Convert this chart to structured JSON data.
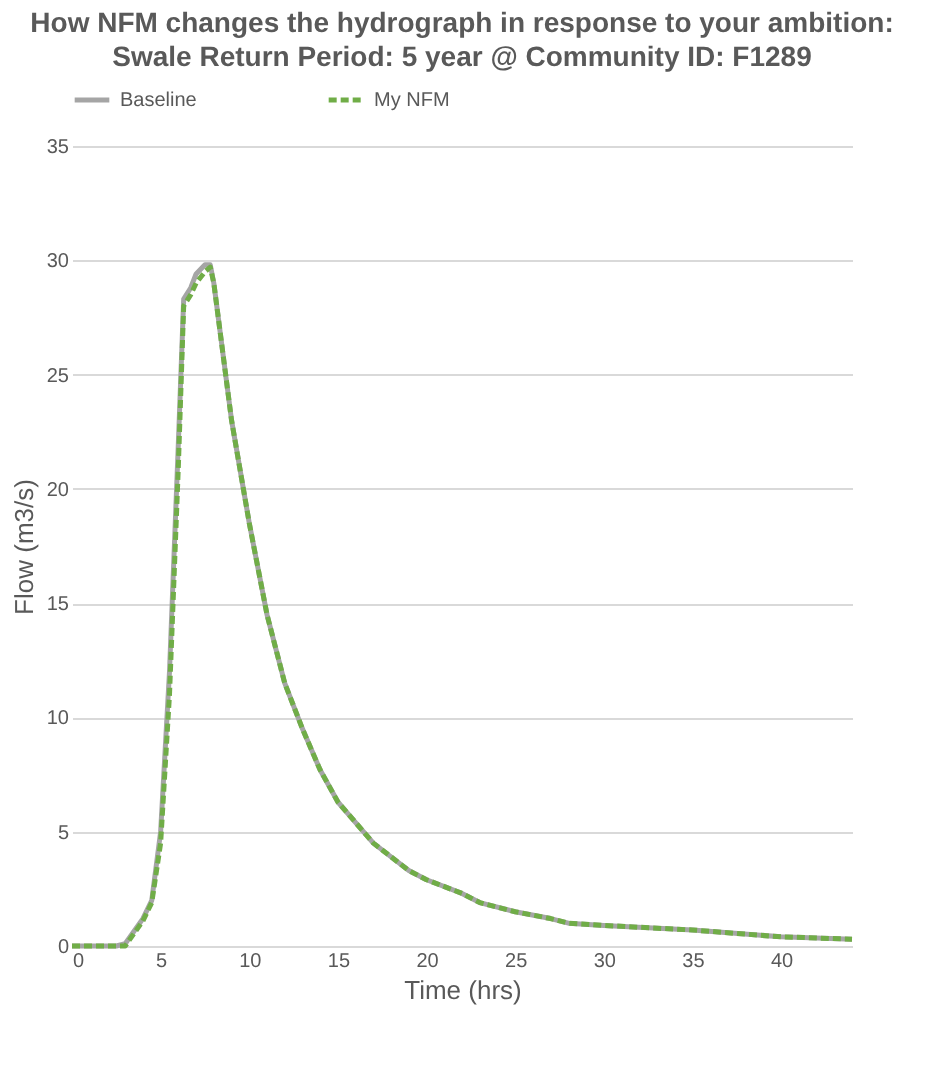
{
  "chart_data": {
    "type": "line",
    "title": "How NFM changes the hydrograph in response to your ambition:",
    "subtitle": "Swale  Return Period: 5 year @ Community ID: F1289",
    "xlabel": "Time (hrs)",
    "ylabel": "Flow (m3/s)",
    "x": [
      0,
      2.5,
      3,
      4,
      4.5,
      5,
      5.5,
      6,
      6.3,
      6.7,
      7,
      7.5,
      7.8,
      8,
      8.5,
      9,
      10,
      11,
      12,
      13,
      14,
      15,
      16,
      17,
      18,
      19,
      20,
      22,
      23,
      25,
      27,
      28,
      30,
      35,
      40,
      44
    ],
    "series": [
      {
        "name": "Baseline",
        "color": "#a5a5a5",
        "line_style": "solid",
        "values": [
          0,
          0,
          0.1,
          1.2,
          2,
          5,
          12,
          22,
          28.3,
          28.8,
          29.4,
          29.8,
          29.8,
          29,
          26,
          23,
          18.5,
          14.5,
          11.5,
          9.5,
          7.7,
          6.3,
          5.4,
          4.5,
          3.9,
          3.3,
          2.9,
          2.3,
          1.9,
          1.5,
          1.2,
          1.0,
          0.9,
          0.7,
          0.4,
          0.3
        ]
      },
      {
        "name": "My NFM",
        "color": "#70ad47",
        "line_style": "dashed",
        "values": [
          0,
          0,
          0,
          1.1,
          1.9,
          4.5,
          11,
          21,
          28,
          28.5,
          29,
          29.5,
          29.7,
          29,
          26,
          23,
          18.5,
          14.5,
          11.5,
          9.5,
          7.7,
          6.3,
          5.4,
          4.5,
          3.9,
          3.3,
          2.9,
          2.3,
          1.9,
          1.5,
          1.2,
          1.0,
          0.9,
          0.7,
          0.4,
          0.3
        ]
      }
    ],
    "xlim": [
      0,
      44
    ],
    "xticks": [
      0,
      5,
      10,
      15,
      20,
      25,
      30,
      35,
      40
    ],
    "ylim": [
      0,
      35
    ],
    "yticks": [
      0,
      5,
      10,
      15,
      20,
      25,
      30,
      35
    ],
    "grid": "y",
    "legend": "top",
    "marker": "none"
  }
}
